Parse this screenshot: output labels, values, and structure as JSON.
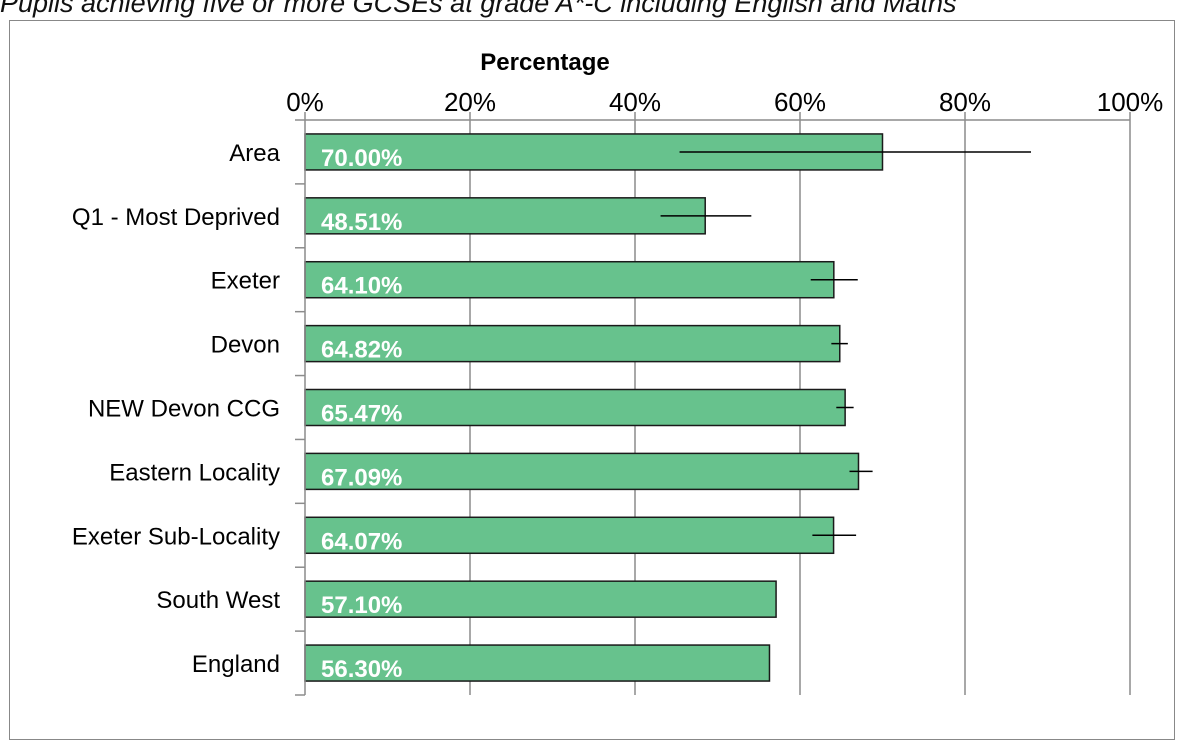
{
  "title": "Pupils achieving five or more GCSEs at grade A*-C including English and Maths",
  "chart_data": {
    "type": "bar",
    "orientation": "horizontal",
    "xlabel": "Percentage",
    "xlim": [
      0,
      100
    ],
    "xticks": [
      0,
      20,
      40,
      60,
      80,
      100
    ],
    "xtick_labels": [
      "0%",
      "20%",
      "40%",
      "60%",
      "80%",
      "100%"
    ],
    "grid": true,
    "bar_color": "#67c28d",
    "categories": [
      "Area",
      "Q1 - Most Deprived",
      "Exeter",
      "Devon",
      "NEW Devon CCG",
      "Eastern Locality",
      "Exeter Sub-Locality",
      "South West",
      "England"
    ],
    "values": [
      70.0,
      48.51,
      64.1,
      64.82,
      65.47,
      67.09,
      64.07,
      57.1,
      56.3
    ],
    "value_labels": [
      "70.00%",
      "48.51%",
      "64.10%",
      "64.82%",
      "65.47%",
      "67.09%",
      "64.07%",
      "57.10%",
      "56.30%"
    ],
    "error_bars": [
      [
        45.4,
        88.0
      ],
      [
        43.1,
        54.1
      ],
      [
        61.3,
        67.0
      ],
      [
        63.8,
        65.8
      ],
      [
        64.4,
        66.5
      ],
      [
        66.0,
        68.8
      ],
      [
        61.5,
        66.8
      ],
      null,
      null
    ]
  }
}
